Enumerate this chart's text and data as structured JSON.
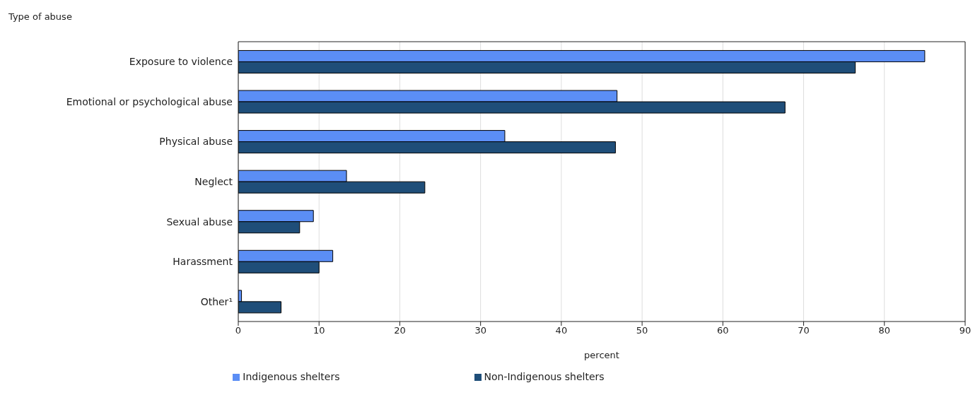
{
  "chart_data": {
    "type": "bar",
    "orientation": "horizontal",
    "ylabel": "Type of abuse",
    "xlabel": "percent",
    "categories": [
      "Exposure to violence",
      "Emotional or psychological abuse",
      "Physical abuse",
      "Neglect",
      "Sexual abuse",
      "Harassment",
      "Other¹"
    ],
    "series": [
      {
        "name": "Indigenous shelters",
        "color": "#5b8ef5",
        "values": [
          85.0,
          46.9,
          33.0,
          13.4,
          9.3,
          11.7,
          0.4
        ]
      },
      {
        "name": "Non-Indigenous shelters",
        "color": "#1f4e79",
        "values": [
          76.4,
          67.7,
          46.7,
          23.1,
          7.6,
          10.0,
          5.3
        ]
      }
    ],
    "xlim": [
      0,
      90
    ],
    "xticks": [
      0,
      10,
      20,
      30,
      40,
      50,
      60,
      70,
      80,
      90
    ],
    "grid": "x",
    "legend": "bottom"
  }
}
